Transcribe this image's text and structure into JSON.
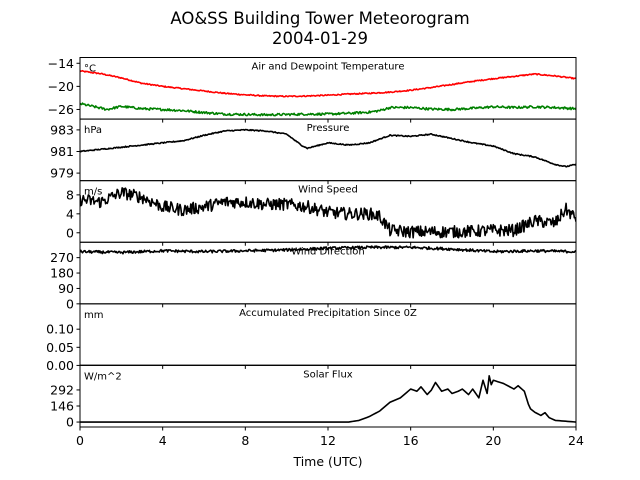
{
  "title": "AO&SS Building Tower Meteorogram",
  "subtitle": "2004-01-29",
  "chart_data": {
    "type": "line",
    "xlabel": "Time (UTC)",
    "xlim": [
      0,
      24
    ],
    "xticks": [
      0,
      4,
      8,
      12,
      16,
      20,
      24
    ],
    "panels": [
      {
        "key": "temp",
        "title": "Air and Dewpoint Temperature",
        "unit": "°C",
        "ylim": [
          -28.5,
          -12.5
        ],
        "yticks": [
          -14,
          -20,
          -26
        ],
        "series": [
          {
            "color": "#ff0000",
            "noise": 0.15,
            "x": [
              0,
              1,
              2,
              3,
              4,
              5,
              6,
              7,
              8,
              9,
              10,
              11,
              12,
              13,
              14,
              15,
              16,
              17,
              18,
              19,
              20,
              21,
              22,
              23,
              24
            ],
            "y": [
              -16,
              -16.7,
              -17.8,
              -19.2,
              -20,
              -20.6,
              -21.2,
              -21.8,
              -22.2,
              -22.5,
              -22.6,
              -22.5,
              -22.3,
              -22,
              -21.8,
              -21.5,
              -21,
              -20.3,
              -19.5,
              -18.7,
              -18,
              -17.4,
              -16.8,
              -17.3,
              -18
            ]
          },
          {
            "color": "#008000",
            "noise": 0.3,
            "x": [
              0,
              0.7,
              1.3,
              2,
              3,
              4,
              5,
              6,
              7,
              8,
              9,
              10,
              11,
              12,
              13,
              14,
              14.5,
              15,
              16,
              17,
              18,
              19,
              20,
              21,
              22,
              23,
              24
            ],
            "y": [
              -24.5,
              -25.3,
              -26,
              -25.2,
              -25.8,
              -26,
              -26.3,
              -26.8,
              -27.2,
              -27.3,
              -27.4,
              -27.3,
              -27.2,
              -27.2,
              -27,
              -26.7,
              -26.3,
              -25.5,
              -25.5,
              -25.9,
              -26,
              -25.7,
              -25.3,
              -25.5,
              -25.3,
              -25.5,
              -25.8
            ]
          }
        ]
      },
      {
        "key": "pressure",
        "title": "Pressure",
        "unit": "hPa",
        "ylim": [
          978.3,
          984.0
        ],
        "yticks": [
          983,
          981,
          979
        ],
        "series": [
          {
            "color": "#000000",
            "noise": 0.05,
            "x": [
              0,
              1,
              2,
              3,
              4,
              5,
              6,
              7,
              8,
              9,
              10,
              10.7,
              11,
              12,
              13,
              14,
              15,
              16,
              17,
              18,
              19,
              20,
              21,
              22,
              23,
              23.5,
              24
            ],
            "y": [
              981,
              981.2,
              981.4,
              981.6,
              981.8,
              982,
              982.5,
              982.9,
              983,
              982.9,
              982.6,
              981.6,
              981.3,
              981.8,
              981.6,
              981.8,
              982.5,
              982.4,
              982.6,
              982.2,
              981.8,
              981.5,
              980.8,
              980.5,
              979.8,
              979.6,
              979.8
            ]
          }
        ]
      },
      {
        "key": "wind_speed",
        "title": "Wind Speed",
        "unit": "m/s",
        "ylim": [
          -2,
          11
        ],
        "yticks": [
          8,
          4,
          0
        ],
        "series": [
          {
            "color": "#000000",
            "noise": 1.3,
            "x": [
              0,
              1,
              2,
              3,
              4,
              5,
              6,
              7,
              8,
              9,
              10,
              11,
              12,
              13,
              14,
              14.5,
              15,
              16,
              17,
              18,
              19,
              20,
              21,
              21.5,
              22,
              23,
              23.5,
              24
            ],
            "y": [
              7,
              6.5,
              8.5,
              7.5,
              5.5,
              4.8,
              5.5,
              6.5,
              6.5,
              6,
              6,
              5.5,
              4.3,
              4,
              4,
              3.5,
              0.5,
              0.2,
              0.2,
              0.2,
              0.3,
              0.5,
              0.5,
              1.5,
              2.5,
              2,
              5,
              3
            ]
          }
        ]
      },
      {
        "key": "wind_direction",
        "title": "Wind Direction",
        "unit": "",
        "ylim": [
          0,
          360
        ],
        "yticks": [
          270,
          180,
          90,
          0
        ],
        "series": [
          {
            "color": "#000000",
            "noise": 8,
            "x": [
              0,
              2,
              4,
              6,
              8,
              10,
              12,
              14,
              16,
              18,
              20,
              22,
              24
            ],
            "y": [
              305,
              300,
              310,
              305,
              310,
              315,
              325,
              330,
              330,
              320,
              305,
              310,
              305
            ]
          }
        ]
      },
      {
        "key": "precip",
        "title": "Accumulated Precipitation Since 0Z",
        "unit": "mm",
        "ylim": [
          0,
          0.17
        ],
        "yticks": [
          0.1,
          0.05,
          0.0
        ],
        "yticklabels": [
          "0.10",
          "0.05",
          "0.00"
        ],
        "series": [
          {
            "color": "#000000",
            "noise": 0,
            "x": [
              0,
              24
            ],
            "y": [
              0,
              0
            ]
          }
        ]
      },
      {
        "key": "solar",
        "title": "Solar Flux",
        "unit": "W/m^2",
        "ylim": [
          -45,
          515
        ],
        "yticks": [
          292,
          146,
          0
        ],
        "series": [
          {
            "color": "#000000",
            "noise": 0,
            "x": [
              0,
              13,
              13.5,
              14,
              14.5,
              15,
              15.5,
              16,
              16.3,
              16.5,
              16.8,
              17,
              17.2,
              17.5,
              17.8,
              18,
              18.3,
              18.5,
              18.8,
              19,
              19.3,
              19.5,
              19.7,
              19.8,
              19.9,
              20,
              20.5,
              21,
              21.2,
              21.5,
              21.7,
              21.8,
              22,
              22.3,
              22.5,
              22.7,
              23,
              24
            ],
            "y": [
              0,
              0,
              15,
              50,
              100,
              180,
              220,
              300,
              280,
              320,
              250,
              290,
              360,
              280,
              300,
              260,
              280,
              300,
              250,
              300,
              220,
              380,
              260,
              420,
              340,
              380,
              350,
              300,
              330,
              280,
              160,
              120,
              90,
              60,
              85,
              40,
              15,
              0
            ]
          }
        ]
      }
    ]
  }
}
